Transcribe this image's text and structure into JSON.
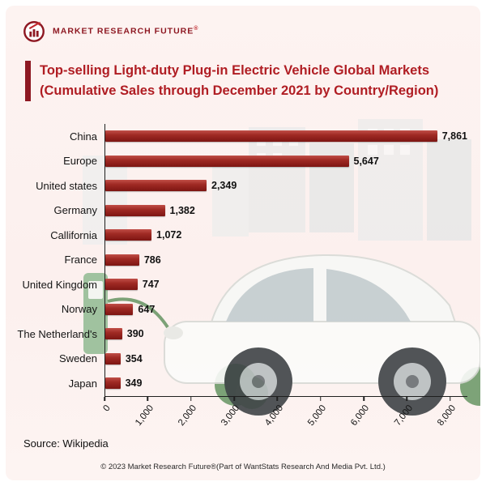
{
  "brand": {
    "name": "MARKET RESEARCH FUTURE",
    "registered_mark": "®"
  },
  "title": {
    "line1": "Top-selling Light-duty Plug-in Electric Vehicle Global Markets",
    "line2": "(Cumulative Sales through December 2021 by Country/Region)"
  },
  "chart_data": {
    "type": "bar",
    "orientation": "horizontal",
    "title": "Top-selling Light-duty Plug-in Electric Vehicle Global Markets (Cumulative Sales through December 2021 by Country/Region)",
    "categories": [
      "China",
      "Europe",
      "United states",
      "Germany",
      "Callifornia",
      "France",
      "United Kingdom",
      "Norway",
      "The Netherland's",
      "Sweden",
      "Japan"
    ],
    "values": [
      7861,
      5647,
      2349,
      1382,
      1072,
      786,
      747,
      647,
      390,
      354,
      349
    ],
    "value_labels": [
      "7,861",
      "5,647",
      "2,349",
      "1,382",
      "1,072",
      "786",
      "747",
      "647",
      "390",
      "354",
      "349"
    ],
    "x_ticks": [
      "0",
      "1,000",
      "2,000",
      "3,000",
      "4,000",
      "5,000",
      "6,000",
      "7,000",
      "8,000"
    ],
    "tick_values": [
      0,
      1000,
      2000,
      3000,
      4000,
      5000,
      6000,
      7000,
      8000
    ],
    "xlim": [
      0,
      8000
    ],
    "x_max_display": 8400,
    "bar_color": "#9e2723",
    "grid": false,
    "legend": false
  },
  "source": "Source: Wikipedia",
  "footer": "© 2023 Market Research Future®(Part of WantStats Research And Media Pvt. Ltd.)"
}
